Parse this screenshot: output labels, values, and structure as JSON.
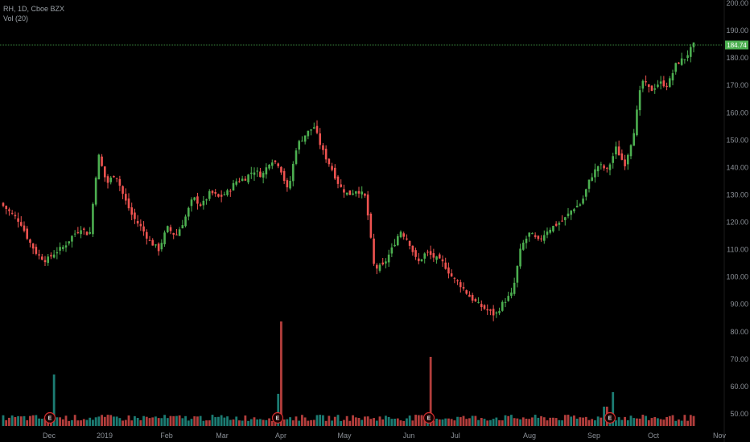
{
  "header": {
    "symbol_line": "RH, 1D, Cboe BZX",
    "volume_line": "Vol (20)"
  },
  "last_price_label": "184.74",
  "colors": {
    "up": "#26a69a",
    "up_candle": "#4caf50",
    "down": "#ef5350",
    "price_line": "#4caf50",
    "axis_text": "#8a8f96",
    "earnings_marker": "#d32f2f"
  },
  "chart_data": {
    "type": "candlestick",
    "y_axis": {
      "ticks": [
        200,
        190,
        180,
        170,
        160,
        150,
        140,
        130,
        120,
        110,
        100,
        90,
        80,
        70,
        60,
        50
      ],
      "range": [
        46,
        201
      ]
    },
    "x_axis": {
      "labels": [
        "Dec",
        "2019",
        "Feb",
        "Mar",
        "Apr",
        "May",
        "Jun",
        "Jul",
        "Aug",
        "Sep",
        "Oct",
        "Nov"
      ]
    },
    "last_price": 184.74,
    "earnings_markers": [
      "Dec",
      "Apr",
      "Jun",
      "Sep"
    ],
    "earnings_glyph": "E",
    "candles_approx": [
      [
        130,
        131,
        124,
        126
      ],
      [
        126,
        128,
        122,
        123
      ],
      [
        123,
        125,
        118,
        120
      ],
      [
        120,
        121,
        112,
        113
      ],
      [
        113,
        115,
        108,
        108
      ],
      [
        108,
        110,
        105,
        106
      ],
      [
        106,
        110,
        104,
        109
      ],
      [
        109,
        112,
        107,
        111
      ],
      [
        111,
        116,
        109,
        115
      ],
      [
        115,
        119,
        112,
        118
      ],
      [
        118,
        125,
        112,
        115
      ],
      [
        115,
        148,
        113,
        145
      ],
      [
        145,
        147,
        133,
        134
      ],
      [
        134,
        140,
        130,
        138
      ],
      [
        138,
        139,
        128,
        129
      ],
      [
        129,
        131,
        120,
        122
      ],
      [
        122,
        124,
        115,
        118
      ],
      [
        118,
        120,
        112,
        113
      ],
      [
        113,
        115,
        108,
        110
      ],
      [
        110,
        120,
        109,
        118
      ],
      [
        118,
        122,
        113,
        115
      ],
      [
        115,
        123,
        112,
        121
      ],
      [
        121,
        130,
        119,
        129
      ],
      [
        129,
        132,
        124,
        126
      ],
      [
        126,
        132,
        125,
        131
      ],
      [
        131,
        135,
        128,
        129
      ],
      [
        129,
        147,
        127,
        131
      ],
      [
        131,
        136,
        128,
        135
      ],
      [
        135,
        138,
        131,
        136
      ],
      [
        136,
        140,
        132,
        139
      ],
      [
        139,
        141,
        136,
        137
      ],
      [
        137,
        144,
        135,
        143
      ],
      [
        143,
        147,
        140,
        141
      ],
      [
        141,
        143,
        130,
        131
      ],
      [
        131,
        150,
        129,
        148
      ],
      [
        148,
        153,
        145,
        152
      ],
      [
        152,
        156,
        149,
        155
      ],
      [
        155,
        157,
        145,
        146
      ],
      [
        146,
        148,
        138,
        140
      ],
      [
        140,
        142,
        131,
        133
      ],
      [
        133,
        135,
        128,
        130
      ],
      [
        130,
        133,
        128,
        132
      ],
      [
        132,
        134,
        126,
        129
      ],
      [
        129,
        131,
        101,
        103
      ],
      [
        103,
        107,
        99,
        104
      ],
      [
        104,
        112,
        102,
        110
      ],
      [
        110,
        120,
        108,
        117
      ],
      [
        117,
        120,
        111,
        113
      ],
      [
        113,
        116,
        103,
        105
      ],
      [
        105,
        111,
        104,
        109
      ],
      [
        109,
        111,
        106,
        107
      ],
      [
        107,
        109,
        103,
        105
      ],
      [
        105,
        107,
        98,
        100
      ],
      [
        100,
        102,
        95,
        97
      ],
      [
        97,
        99,
        91,
        93
      ],
      [
        93,
        95,
        88,
        90
      ],
      [
        90,
        92,
        86,
        88
      ],
      [
        88,
        91,
        84,
        86
      ],
      [
        86,
        93,
        85,
        91
      ],
      [
        91,
        96,
        89,
        94
      ],
      [
        94,
        122,
        106,
        111
      ],
      [
        111,
        118,
        108,
        116
      ],
      [
        116,
        119,
        111,
        113
      ],
      [
        113,
        118,
        109,
        117
      ],
      [
        117,
        121,
        114,
        119
      ],
      [
        119,
        124,
        116,
        121
      ],
      [
        121,
        127,
        118,
        125
      ],
      [
        125,
        129,
        122,
        127
      ],
      [
        127,
        138,
        125,
        136
      ],
      [
        136,
        143,
        134,
        141
      ],
      [
        141,
        147,
        137,
        139
      ],
      [
        139,
        149,
        137,
        147
      ],
      [
        147,
        148,
        138,
        141
      ],
      [
        141,
        153,
        139,
        152
      ],
      [
        152,
        175,
        150,
        172
      ],
      [
        172,
        175,
        165,
        168
      ],
      [
        168,
        173,
        166,
        171
      ],
      [
        171,
        176,
        168,
        170
      ],
      [
        170,
        180,
        168,
        178
      ],
      [
        178,
        186,
        174,
        180
      ],
      [
        180,
        186,
        178,
        184.74
      ]
    ],
    "volume_note": "Volume bars with spikes around earnings dates"
  }
}
